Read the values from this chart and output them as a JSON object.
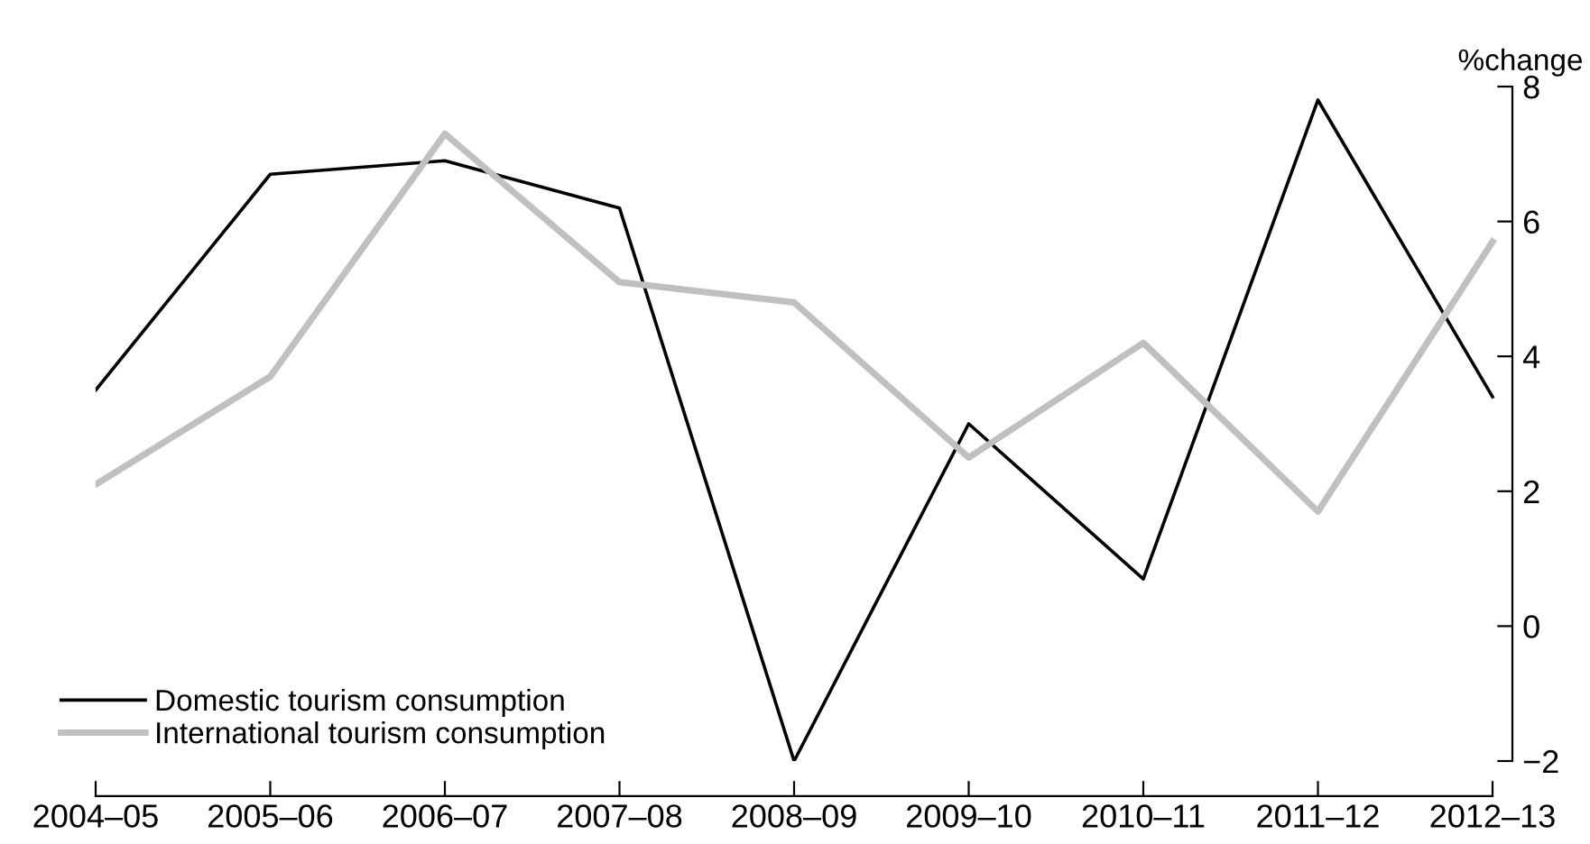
{
  "chart_data": {
    "type": "line",
    "ylabel": "%change",
    "categories": [
      "2004–05",
      "2005–06",
      "2006–07",
      "2007–08",
      "2008–09",
      "2009–10",
      "2010–11",
      "2011–12",
      "2012–13"
    ],
    "series": [
      {
        "name": "Domestic tourism consumption",
        "color": "#000000",
        "values": [
          3.5,
          6.7,
          6.9,
          6.2,
          -2.0,
          3.0,
          0.7,
          7.8,
          3.4
        ]
      },
      {
        "name": "International tourism consumption",
        "color": "#c0c0c0",
        "values": [
          2.1,
          3.7,
          7.3,
          5.1,
          4.8,
          2.5,
          4.2,
          1.7,
          5.7
        ]
      }
    ],
    "ylim": [
      -2,
      8
    ],
    "yticks": [
      {
        "value": -2,
        "label": "−2"
      },
      0,
      2,
      4,
      6,
      8
    ],
    "grid": false,
    "legend": "bottom left",
    "marker": "none",
    "line_style": "solid"
  }
}
